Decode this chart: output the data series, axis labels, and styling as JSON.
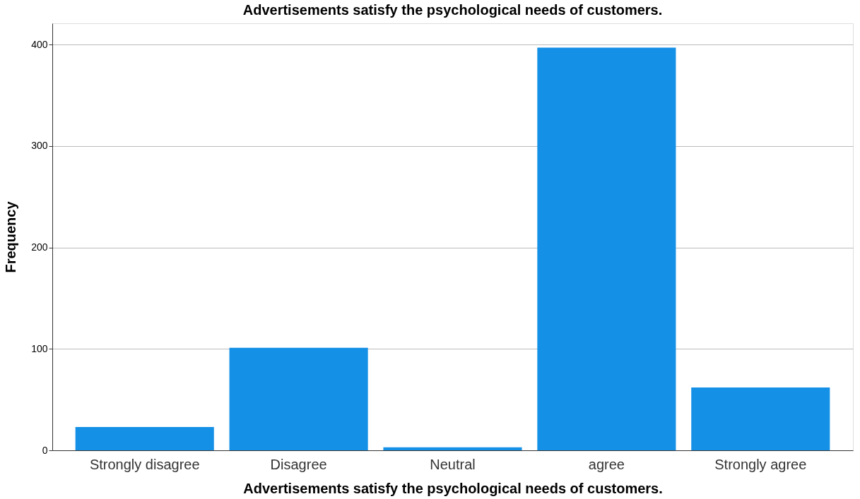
{
  "chart_data": {
    "type": "bar",
    "title": "Advertisements satisfy the psychological needs of customers.",
    "xlabel": "Advertisements satisfy the psychological needs of customers.",
    "ylabel": "Frequency",
    "categories": [
      "Strongly disagree",
      "Disagree",
      "Neutral",
      "agree",
      "Strongly agree"
    ],
    "values": [
      23,
      101,
      3,
      397,
      62
    ],
    "color": "#1490e6",
    "ylim": [
      0,
      421
    ],
    "yticks": [
      0,
      100,
      200,
      300,
      400
    ],
    "grid": "y"
  }
}
